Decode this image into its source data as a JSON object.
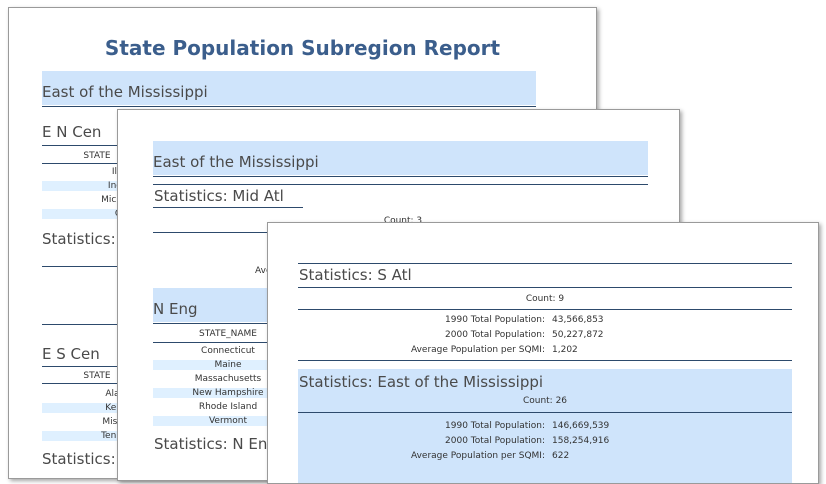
{
  "page1": {
    "title": "State Population Subregion Report",
    "region": "East of the Mississippi",
    "subregion_a": "E N Cen",
    "col_header": "STATE",
    "states_a": [
      "Illi",
      "Ind",
      "Mich",
      "O"
    ],
    "stats_label": "Statistics:",
    "subregion_b": "E S Cen",
    "states_b": [
      "Alal",
      "Ken",
      "Miss",
      "Tenn"
    ],
    "stats_label_b": "Statistics:"
  },
  "page2": {
    "region": "East of the Mississippi",
    "stats_title": "Statistics: Mid Atl",
    "count": "Count: 3",
    "avg_partial": "Ave",
    "subregion": "N Eng",
    "col_header": "STATE_NAME",
    "states": [
      "Connecticut",
      "Maine",
      "Massachusetts",
      "New Hampshire",
      "Rhode Island",
      "Vermont"
    ],
    "stats_bottom": "Statistics: N En"
  },
  "page3": {
    "stats_title": "Statistics: S Atl",
    "count": "Count: 9",
    "rows": [
      {
        "label": "1990 Total Population:",
        "value": "43,566,853"
      },
      {
        "label": "2000 Total Population:",
        "value": "50,227,872"
      },
      {
        "label": "Average Population per SQMI:",
        "value": "1,202"
      }
    ],
    "region_stats_title": "Statistics: East of the Mississippi",
    "region_count": "Count: 26",
    "region_rows": [
      {
        "label": "1990 Total Population:",
        "value": "146,669,539"
      },
      {
        "label": "2000 Total Population:",
        "value": "158,254,916"
      },
      {
        "label": "Average Population per SQMI:",
        "value": "622"
      }
    ]
  }
}
